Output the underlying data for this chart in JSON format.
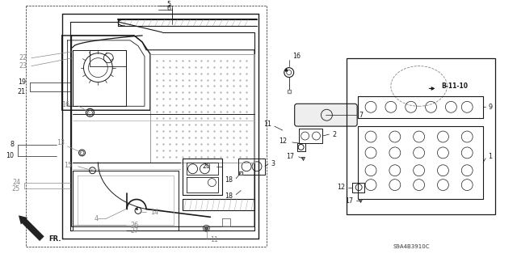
{
  "bg_color": "#ffffff",
  "fig_width": 6.4,
  "fig_height": 3.19,
  "dpi": 100,
  "line_color": "#1a1a1a",
  "gray_color": "#888888",
  "label_fontsize": 5.8,
  "ref_code": "S9A4B3910C",
  "b_ref": "B-11-10"
}
